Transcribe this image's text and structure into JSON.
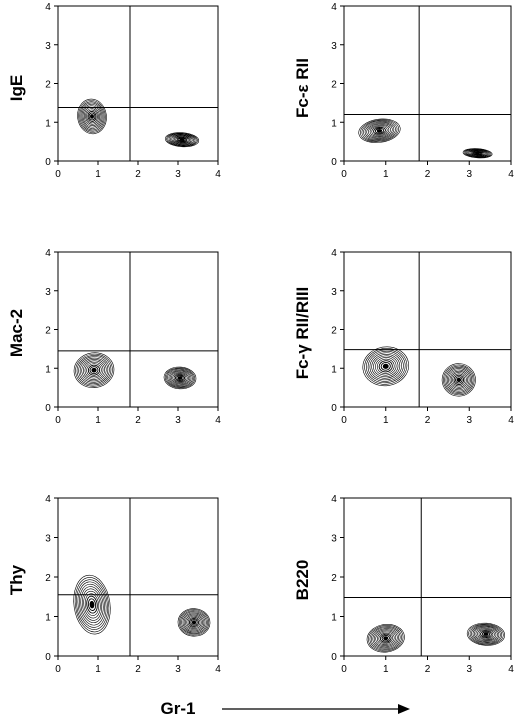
{
  "chart_data": [
    {
      "type": "contour",
      "ylabel": "IgE",
      "xlim": [
        0,
        4
      ],
      "ylim": [
        0,
        4
      ],
      "xticks": [
        "0",
        "1",
        "2",
        "3",
        "4"
      ],
      "yticks": [
        "0",
        "1",
        "2",
        "3",
        "4"
      ],
      "gate": {
        "x": 1.8,
        "y": 1.38
      },
      "populations": [
        {
          "x": 0.85,
          "y": 1.15,
          "sx": 0.36,
          "sy": 0.45
        },
        {
          "x": 3.1,
          "y": 0.55,
          "sx": 0.42,
          "sy": 0.18
        }
      ]
    },
    {
      "type": "contour",
      "ylabel": "Fc-ε RII",
      "xlim": [
        0,
        4
      ],
      "ylim": [
        0,
        4
      ],
      "xticks": [
        "0",
        "1",
        "2",
        "3",
        "4"
      ],
      "yticks": [
        "0",
        "1",
        "2",
        "3",
        "4"
      ],
      "gate": {
        "x": 1.8,
        "y": 1.2
      },
      "populations": [
        {
          "x": 0.85,
          "y": 0.78,
          "sx": 0.5,
          "sy": 0.3
        },
        {
          "x": 3.2,
          "y": 0.2,
          "sx": 0.35,
          "sy": 0.12
        }
      ]
    },
    {
      "type": "contour",
      "ylabel": "Mac-2",
      "xlim": [
        0,
        4
      ],
      "ylim": [
        0,
        4
      ],
      "xticks": [
        "0",
        "1",
        "2",
        "3",
        "4"
      ],
      "yticks": [
        "0",
        "1",
        "2",
        "3",
        "4"
      ],
      "gate": {
        "x": 1.8,
        "y": 1.45
      },
      "populations": [
        {
          "x": 0.9,
          "y": 0.95,
          "sx": 0.5,
          "sy": 0.45
        },
        {
          "x": 3.05,
          "y": 0.75,
          "sx": 0.4,
          "sy": 0.28
        }
      ]
    },
    {
      "type": "contour",
      "ylabel": "Fc-γ RII/RIII",
      "xlim": [
        0,
        4
      ],
      "ylim": [
        0,
        4
      ],
      "xticks": [
        "0",
        "1",
        "2",
        "3",
        "4"
      ],
      "yticks": [
        "0",
        "1",
        "2",
        "3",
        "4"
      ],
      "gate": {
        "x": 1.8,
        "y": 1.48
      },
      "populations": [
        {
          "x": 1.0,
          "y": 1.05,
          "sx": 0.55,
          "sy": 0.5
        },
        {
          "x": 2.75,
          "y": 0.7,
          "sx": 0.4,
          "sy": 0.42
        }
      ]
    },
    {
      "type": "contour",
      "ylabel": "Thy",
      "xlim": [
        0,
        4
      ],
      "ylim": [
        0,
        4
      ],
      "xticks": [
        "0",
        "1",
        "2",
        "3",
        "4"
      ],
      "yticks": [
        "0",
        "1",
        "2",
        "3",
        "4"
      ],
      "gate": {
        "x": 1.8,
        "y": 1.55
      },
      "populations": [
        {
          "x": 0.85,
          "y": 1.3,
          "sx": 0.45,
          "sy": 0.75
        },
        {
          "x": 3.4,
          "y": 0.85,
          "sx": 0.4,
          "sy": 0.35
        }
      ]
    },
    {
      "type": "contour",
      "ylabel": "B220",
      "xlim": [
        0,
        4
      ],
      "ylim": [
        0,
        4
      ],
      "xticks": [
        "0",
        "1",
        "2",
        "3",
        "4"
      ],
      "yticks": [
        "0",
        "1",
        "2",
        "3",
        "4"
      ],
      "gate": {
        "x": 1.85,
        "y": 1.48
      },
      "populations": [
        {
          "x": 1.0,
          "y": 0.45,
          "sx": 0.45,
          "sy": 0.35
        },
        {
          "x": 3.4,
          "y": 0.55,
          "sx": 0.45,
          "sy": 0.28
        }
      ]
    }
  ],
  "xaxis_title": "Gr-1"
}
